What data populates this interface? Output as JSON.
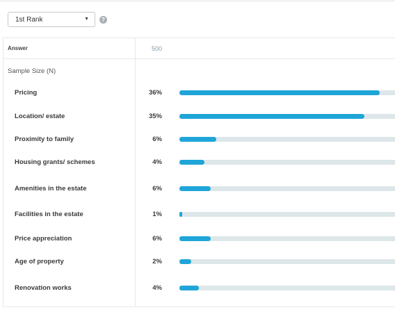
{
  "filter": {
    "selected": "1st Rank",
    "help_icon": "question-mark-icon"
  },
  "table": {
    "header_answer": "Answer",
    "header_n": "500",
    "sample_label": "Sample Size (N)",
    "colors": {
      "bar": "#1fa5d8",
      "track": "#dde7e9"
    },
    "rows": [
      {
        "label": "Pricing",
        "pct": "36%",
        "fill": 0.925
      },
      {
        "label": "Location/ estate",
        "pct": "35%",
        "fill": 0.855
      },
      {
        "label": "Proximity to family",
        "pct": "6%",
        "fill": 0.17
      },
      {
        "label": "Housing grants/ schemes",
        "pct": "4%",
        "fill": 0.115
      },
      {
        "label": "Amenities in the estate",
        "pct": "6%",
        "fill": 0.145
      },
      {
        "label": "Facilities in the estate",
        "pct": "1%",
        "fill": 0.012
      },
      {
        "label": "Price appreciation",
        "pct": "6%",
        "fill": 0.145
      },
      {
        "label": "Age of property",
        "pct": "2%",
        "fill": 0.055
      },
      {
        "label": "Renovation works",
        "pct": "4%",
        "fill": 0.09
      }
    ]
  }
}
